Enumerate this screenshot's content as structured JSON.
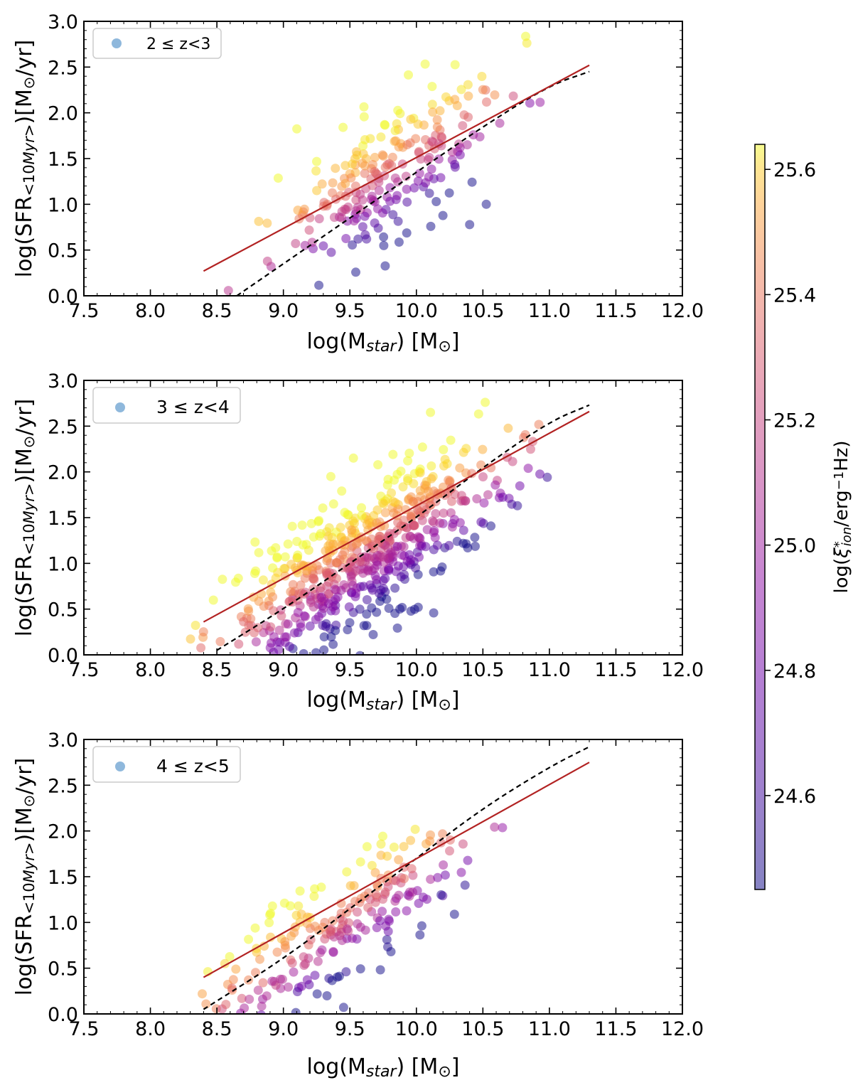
{
  "chart_data": [
    {
      "type": "scatter",
      "legend": "2 ≤ z<3",
      "legend_marker_color": "#8fb8dc",
      "xlabel": "log(M_star) [M⊙]",
      "ylabel": "log(SFR_<10Myr>) [M⊙/yr]",
      "xlim": [
        7.5,
        12.0
      ],
      "ylim": [
        0.0,
        3.0
      ],
      "xticks": [
        "7.5",
        "8.0",
        "8.5",
        "9.0",
        "9.5",
        "10.0",
        "10.5",
        "11.0",
        "11.5",
        "12.0"
      ],
      "yticks": [
        "0.0",
        "0.5",
        "1.0",
        "1.5",
        "2.0",
        "2.5",
        "3.0"
      ],
      "fit_line": [
        [
          8.4,
          0.27
        ],
        [
          11.3,
          2.52
        ]
      ],
      "main_sequence_curve": [
        [
          8.65,
          0.0
        ],
        [
          9.0,
          0.35
        ],
        [
          9.5,
          0.85
        ],
        [
          10.0,
          1.35
        ],
        [
          10.5,
          1.85
        ],
        [
          11.0,
          2.3
        ],
        [
          11.3,
          2.45
        ]
      ],
      "points_seed": 11,
      "points_count": 230,
      "x_mean": 9.85,
      "x_sd": 0.42,
      "slope": 0.78,
      "y_at_10": 1.48,
      "y_sd": 0.36
    },
    {
      "type": "scatter",
      "legend": "3 ≤ z<4",
      "legend_marker_color": "#8fb8dc",
      "xlabel": "log(M_star) [M⊙]",
      "ylabel": "log(SFR_<10Myr>) [M⊙/yr]",
      "xlim": [
        7.5,
        12.0
      ],
      "ylim": [
        0.0,
        3.0
      ],
      "xticks": [
        "7.5",
        "8.0",
        "8.5",
        "9.0",
        "9.5",
        "10.0",
        "10.5",
        "11.0",
        "11.5",
        "12.0"
      ],
      "yticks": [
        "0.0",
        "0.5",
        "1.0",
        "1.5",
        "2.0",
        "2.5",
        "3.0"
      ],
      "fit_line": [
        [
          8.4,
          0.36
        ],
        [
          11.3,
          2.66
        ]
      ],
      "main_sequence_curve": [
        [
          8.5,
          0.05
        ],
        [
          9.0,
          0.5
        ],
        [
          9.5,
          1.0
        ],
        [
          10.0,
          1.5
        ],
        [
          10.5,
          2.05
        ],
        [
          11.0,
          2.55
        ],
        [
          11.3,
          2.73
        ]
      ],
      "points_seed": 23,
      "points_count": 600,
      "x_mean": 9.55,
      "x_sd": 0.52,
      "slope": 0.8,
      "y_at_10": 1.36,
      "y_sd": 0.38
    },
    {
      "type": "scatter",
      "legend": "4 ≤ z<5",
      "legend_marker_color": "#8fb8dc",
      "xlabel": "log(M_star) [M⊙]",
      "ylabel": "log(SFR_<10Myr>) [M⊙/yr]",
      "xlim": [
        7.5,
        12.0
      ],
      "ylim": [
        0.0,
        3.0
      ],
      "xticks": [
        "7.5",
        "8.0",
        "8.5",
        "9.0",
        "9.5",
        "10.0",
        "10.5",
        "11.0",
        "11.5",
        "12.0"
      ],
      "yticks": [
        "0.0",
        "0.5",
        "1.0",
        "1.5",
        "2.0",
        "2.5",
        "3.0"
      ],
      "fit_line": [
        [
          8.4,
          0.4
        ],
        [
          11.3,
          2.75
        ]
      ],
      "main_sequence_curve": [
        [
          8.4,
          0.05
        ],
        [
          9.0,
          0.6
        ],
        [
          9.5,
          1.15
        ],
        [
          10.0,
          1.7
        ],
        [
          10.5,
          2.25
        ],
        [
          11.0,
          2.7
        ],
        [
          11.3,
          2.92
        ]
      ],
      "points_seed": 37,
      "points_count": 230,
      "x_mean": 9.45,
      "x_sd": 0.5,
      "slope": 0.88,
      "y_at_10": 1.45,
      "y_sd": 0.32
    }
  ],
  "colorbar": {
    "label": "log(ξ*_ion / erg⁻¹Hz)",
    "label_main": "log(",
    "label_xi": "ξ",
    "label_sup": "*",
    "label_sub": "ion",
    "label_rest": "/erg",
    "label_exp": "−1",
    "label_tail": "Hz)",
    "range": [
      24.45,
      25.64
    ],
    "ticks": [
      24.6,
      24.8,
      25.0,
      25.2,
      25.4,
      25.6
    ],
    "tick_labels": [
      "24.6",
      "24.8",
      "25.0",
      "25.2",
      "25.4",
      "25.6"
    ],
    "colormap": "plasma",
    "alpha": 0.5
  },
  "colors": {
    "fit_line": "#b22222",
    "main_sequence_curve": "#000000"
  }
}
